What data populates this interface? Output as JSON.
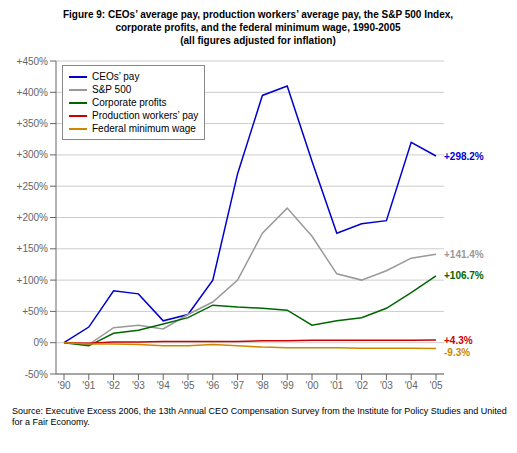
{
  "chart_data": {
    "type": "line",
    "title": "Figure 9: CEOs’ average pay, production workers’ average pay, the S&P 500 Index,\ncorporate profits, and the federal minimum wage, 1990-2005\n(all figures adjusted for inflation)",
    "categories": [
      "'90",
      "'91",
      "'92",
      "'93",
      "'94",
      "'95",
      "'96",
      "'97",
      "'98",
      "'99",
      "'00",
      "'01",
      "'02",
      "'03",
      "'04",
      "'05"
    ],
    "series": [
      {
        "name": "CEOs’ pay",
        "color": "#0000cc",
        "values": [
          0,
          25,
          83,
          78,
          35,
          45,
          100,
          270,
          395,
          410,
          290,
          175,
          190,
          195,
          320,
          298.2
        ],
        "value_labels": [
          null,
          null,
          null,
          null,
          null,
          null,
          null,
          null,
          null,
          null,
          null,
          null,
          null,
          null,
          null,
          "+298.2%"
        ]
      },
      {
        "name": "S&P 500",
        "color": "#999999",
        "values": [
          0,
          -3,
          24,
          28,
          22,
          45,
          65,
          100,
          175,
          215,
          170,
          110,
          100,
          115,
          135,
          141.4
        ],
        "value_labels": [
          null,
          null,
          null,
          null,
          null,
          null,
          null,
          null,
          null,
          null,
          null,
          null,
          null,
          null,
          null,
          "+141.4%"
        ]
      },
      {
        "name": "Corporate profits",
        "color": "#006600",
        "values": [
          0,
          -5,
          15,
          20,
          30,
          40,
          60,
          57,
          55,
          52,
          28,
          35,
          40,
          55,
          80,
          106.7
        ],
        "value_labels": [
          null,
          null,
          null,
          null,
          null,
          null,
          null,
          null,
          null,
          null,
          null,
          null,
          null,
          null,
          null,
          "+106.7%"
        ]
      },
      {
        "name": "Production workers’ pay",
        "color": "#cc0000",
        "values": [
          0,
          -1,
          1,
          1,
          2,
          2,
          2,
          2,
          3,
          3,
          4,
          4,
          4,
          4,
          4,
          4.3
        ],
        "value_labels": [
          null,
          null,
          null,
          null,
          null,
          null,
          null,
          null,
          null,
          null,
          null,
          null,
          null,
          null,
          null,
          "+4.3%"
        ]
      },
      {
        "name": "Federal minimum wage",
        "color": "#cc8800",
        "values": [
          0,
          -2,
          -2,
          -3,
          -5,
          -5,
          -3,
          -5,
          -7,
          -8,
          -8,
          -8,
          -9,
          -9,
          -9,
          -9.3
        ],
        "value_labels": [
          null,
          null,
          null,
          null,
          null,
          null,
          null,
          null,
          null,
          null,
          null,
          null,
          null,
          null,
          null,
          "-9.3%"
        ]
      }
    ],
    "ylim": [
      -50,
      450
    ],
    "yticks": [
      {
        "value": -50,
        "label": "-50%"
      },
      {
        "value": 0,
        "label": "0%"
      },
      {
        "value": 50,
        "label": "+50%"
      },
      {
        "value": 100,
        "label": "+100%"
      },
      {
        "value": 150,
        "label": "+150%"
      },
      {
        "value": 200,
        "label": "+200%"
      },
      {
        "value": 250,
        "label": "+250%"
      },
      {
        "value": 300,
        "label": "+300%"
      },
      {
        "value": 350,
        "label": "+350%"
      },
      {
        "value": 400,
        "label": "+400%"
      },
      {
        "value": 450,
        "label": "+450%"
      }
    ],
    "grid": true,
    "legend": "upper left",
    "annotations": [
      "Source: Executive Excess 2006, the 13th Annual CEO Compensation Survey from the Institute for Policy Studies and United for a Fair Economy."
    ]
  }
}
